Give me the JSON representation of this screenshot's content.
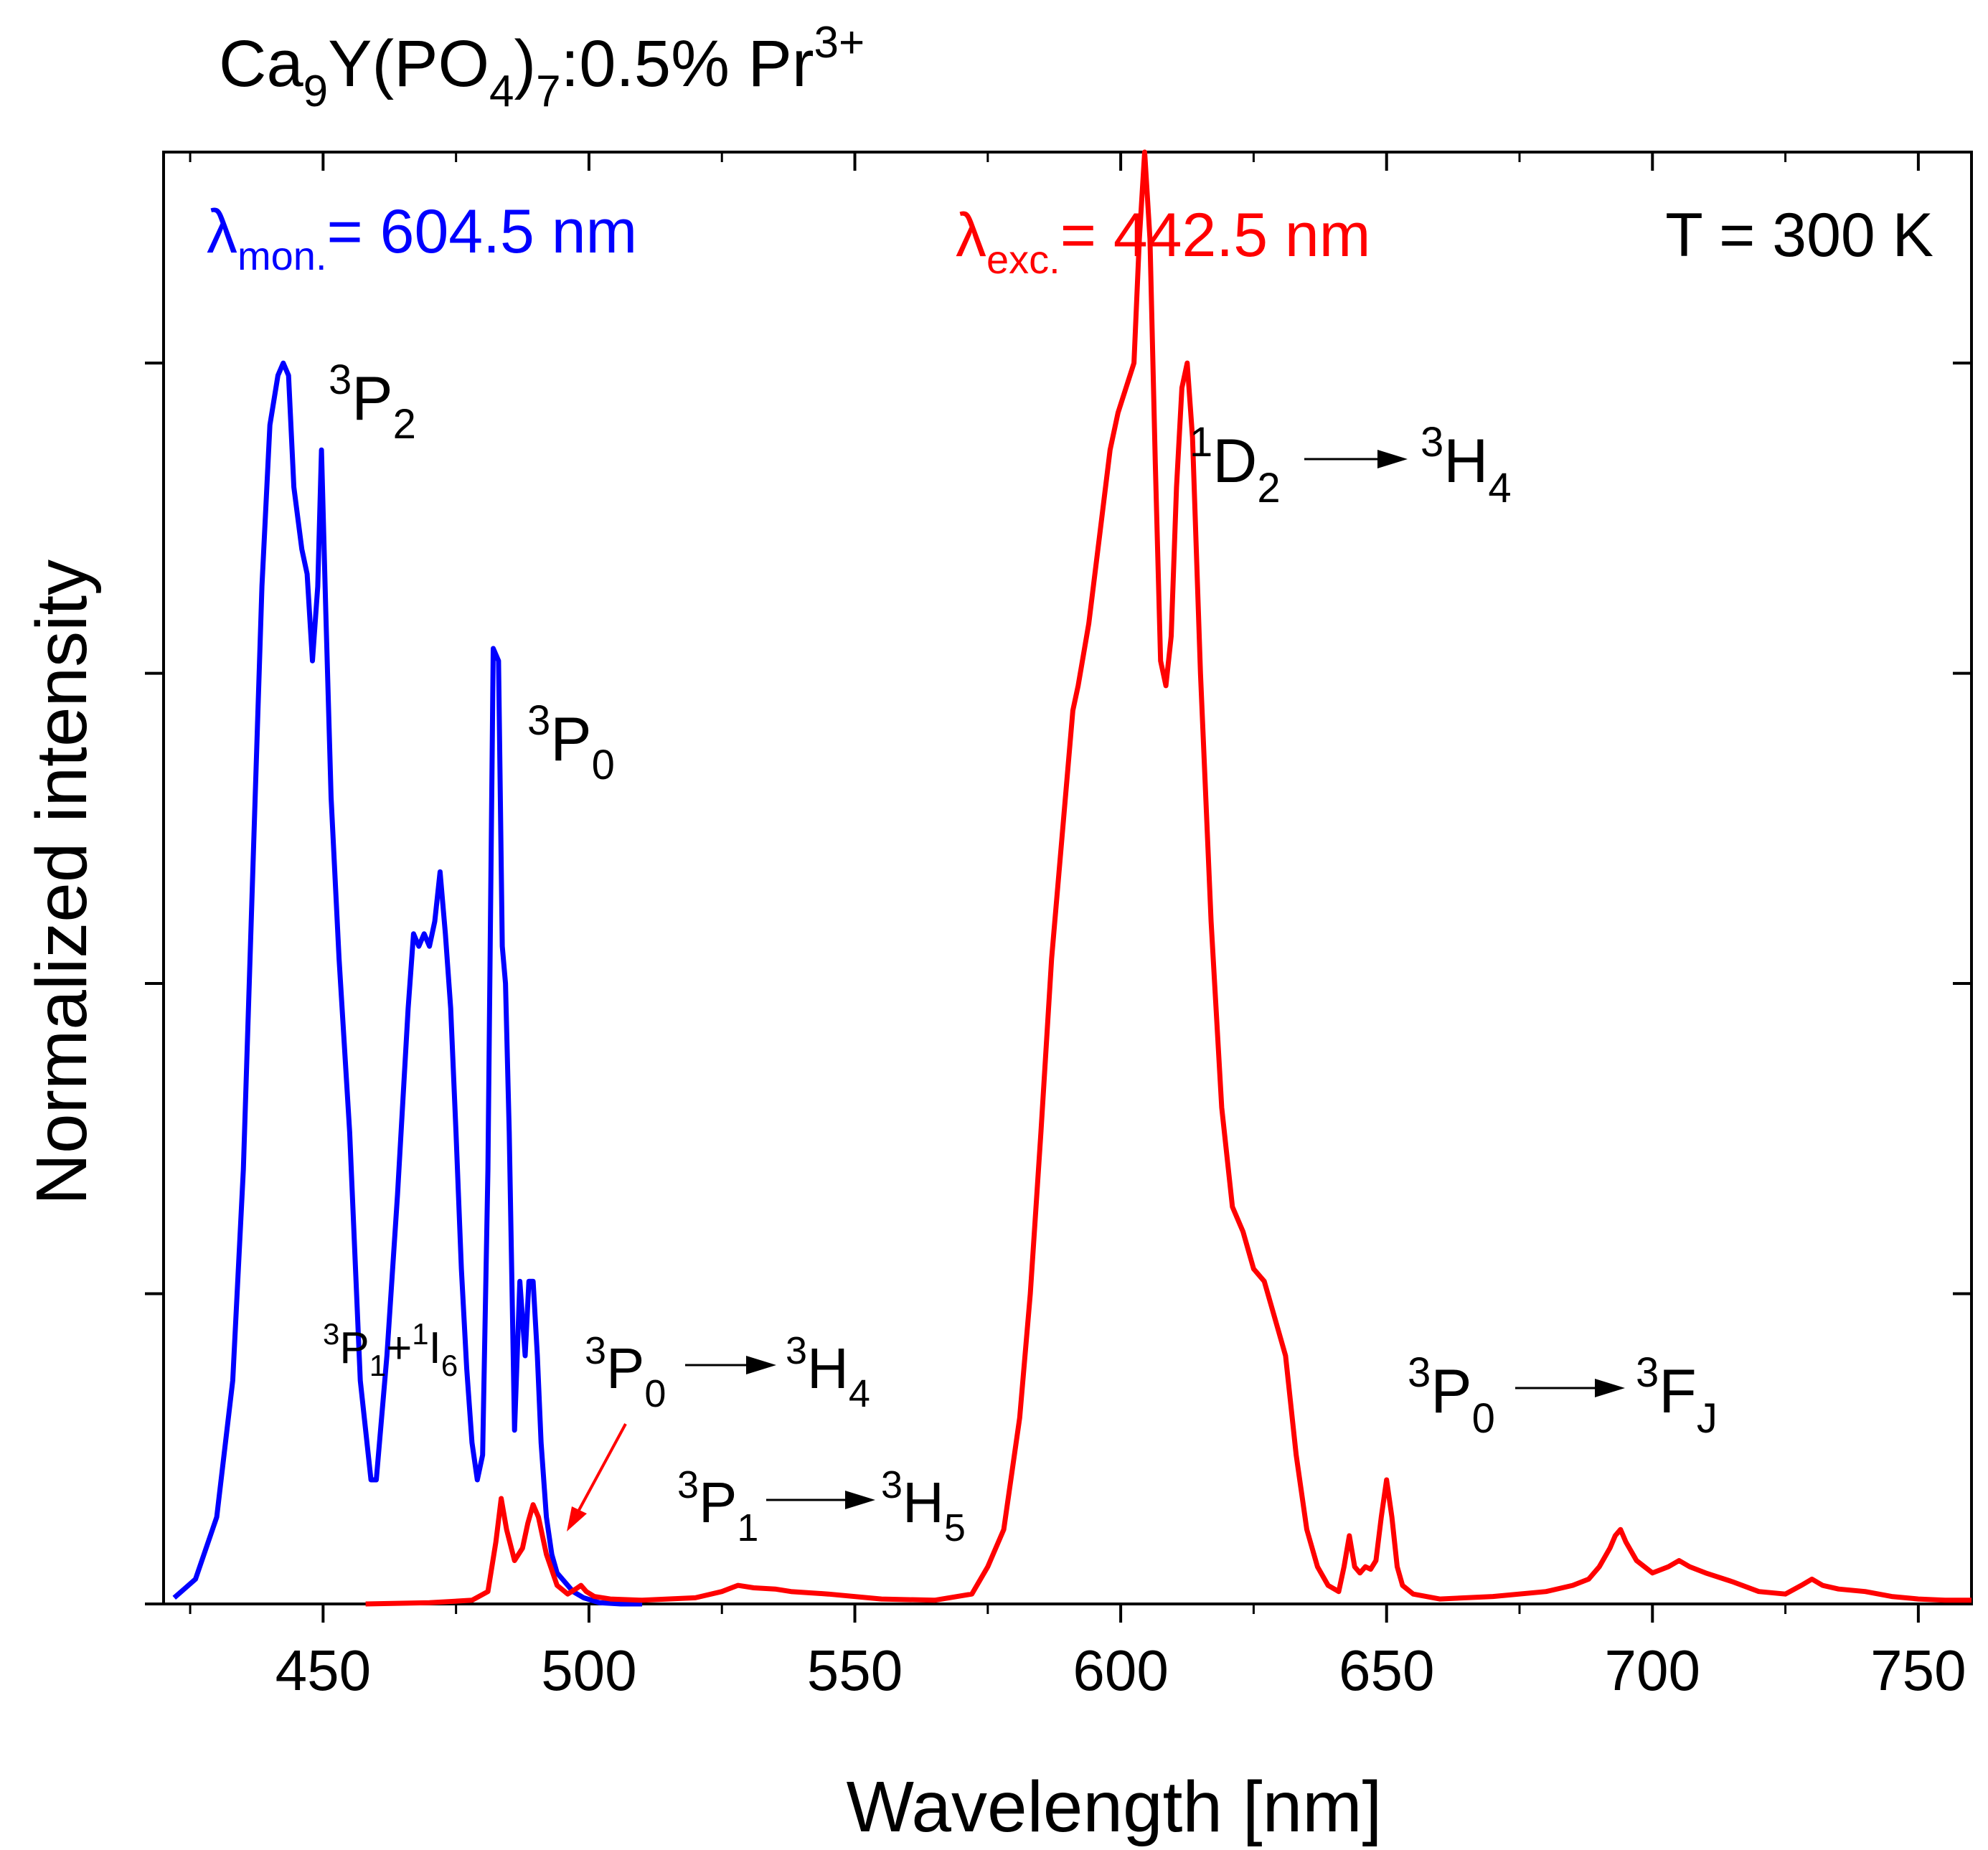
{
  "chart_data": {
    "type": "line",
    "title": {
      "base1": "Ca",
      "sub1": "9",
      "base2": "Y(PO",
      "sub2": "4",
      "base3": ")",
      "sub3": "7",
      "base4": ":0.5% Pr",
      "sup4": "3+"
    },
    "xlabel": "Wavelength [nm]",
    "ylabel": "Normalized intensity",
    "xlim": [
      420,
      760
    ],
    "ylim": [
      0,
      1.17
    ],
    "x_ticks": [
      450,
      500,
      550,
      600,
      650,
      700,
      750
    ],
    "x_tick_labels": [
      "450",
      "500",
      "550",
      "600",
      "650",
      "700",
      "750"
    ],
    "x_minor_ticks": [
      425,
      475,
      525,
      575,
      625,
      675,
      725
    ],
    "y_ticks": [
      0,
      0.25,
      0.5,
      0.75,
      1.0
    ],
    "legend": {
      "excitation": {
        "symbol": "λ",
        "sub": "mon.",
        "text": "= 604.5 nm"
      },
      "emission": {
        "symbol": "λ",
        "sub": "exc.",
        "text": "= 442.5 nm"
      },
      "temperature": "T = 300 K"
    },
    "annotations": {
      "p2": {
        "sup": "3",
        "base": "P",
        "sub": "2"
      },
      "p0": {
        "sup": "3",
        "base": "P",
        "sub": "0"
      },
      "p1i6": {
        "sup1": "3",
        "base1": "P",
        "sub1": "1",
        "plus": "+",
        "sup2": "1",
        "base2": "I",
        "sub2": "6"
      },
      "p0h4": {
        "sup1": "3",
        "base1": "P",
        "sub1": "0",
        "sup2": "3",
        "base2": "H",
        "sub2": "4"
      },
      "p1h5": {
        "sup1": "3",
        "base1": "P",
        "sub1": "1",
        "sup2": "3",
        "base2": "H",
        "sub2": "5"
      },
      "d2h4": {
        "sup1": "1",
        "base1": "D",
        "sub1": "2",
        "sup2": "3",
        "base2": "H",
        "sub2": "4"
      },
      "p0fj": {
        "sup1": "3",
        "base1": "P",
        "sub1": "0",
        "sup2": "3",
        "base2": "F",
        "sub2": "J"
      }
    },
    "series": [
      {
        "name": "Excitation (λmon. = 604.5 nm)",
        "color": "#0000ff",
        "x": [
          422,
          426,
          430,
          433,
          435,
          437,
          438.5,
          440,
          441.5,
          442.5,
          443.5,
          444.5,
          446,
          447,
          448,
          449,
          449.7,
          450.5,
          451.5,
          453,
          455,
          457,
          459,
          460,
          462,
          464,
          466,
          467,
          468,
          469,
          470,
          471,
          472,
          473,
          474,
          475,
          476,
          477,
          478,
          479,
          480,
          481,
          482,
          483,
          483.7,
          484.3,
          485,
          486,
          487,
          488,
          488.7,
          489.5,
          490.3,
          491,
          492,
          493,
          494,
          495,
          497,
          499,
          502,
          506,
          510
        ],
        "y": [
          0.005,
          0.02,
          0.07,
          0.18,
          0.35,
          0.62,
          0.82,
          0.95,
          0.99,
          1.0,
          0.99,
          0.9,
          0.85,
          0.83,
          0.76,
          0.82,
          0.93,
          0.8,
          0.65,
          0.52,
          0.38,
          0.18,
          0.1,
          0.1,
          0.2,
          0.33,
          0.48,
          0.54,
          0.53,
          0.54,
          0.53,
          0.55,
          0.59,
          0.54,
          0.48,
          0.38,
          0.27,
          0.19,
          0.13,
          0.1,
          0.12,
          0.35,
          0.77,
          0.76,
          0.53,
          0.5,
          0.38,
          0.14,
          0.26,
          0.2,
          0.26,
          0.26,
          0.2,
          0.13,
          0.07,
          0.04,
          0.025,
          0.02,
          0.01,
          0.005,
          0.001,
          0,
          0
        ]
      },
      {
        "name": "Emission (λexc. = 442.5 nm)",
        "color": "#ff0000",
        "x": [
          458,
          470,
          478,
          481,
          482.5,
          483.5,
          484.5,
          486,
          487.5,
          488.5,
          489.5,
          490.5,
          492,
          494,
          496,
          497.5,
          498.5,
          499.5,
          501,
          504,
          510,
          520,
          525,
          528,
          531,
          535,
          538,
          545,
          555,
          565,
          572,
          575,
          578,
          581,
          583,
          585,
          587,
          589,
          591,
          592,
          594,
          596,
          598,
          599.5,
          601,
          602.5,
          603.5,
          604.5,
          605.5,
          606.5,
          607.5,
          608.5,
          609.5,
          610.5,
          611.5,
          612.5,
          613.5,
          615,
          617,
          619,
          621,
          623,
          625,
          627,
          629,
          631,
          633,
          635,
          637,
          639,
          641,
          642,
          643,
          644,
          645,
          646,
          647,
          648,
          649,
          650,
          651,
          652,
          653,
          655,
          660,
          670,
          680,
          685,
          688,
          690,
          692,
          693,
          694,
          695,
          697,
          700,
          703,
          705,
          707,
          710,
          715,
          720,
          725,
          728,
          730,
          732,
          735,
          740,
          745,
          750,
          755,
          760
        ],
        "y": [
          0,
          0.001,
          0.003,
          0.01,
          0.05,
          0.085,
          0.06,
          0.035,
          0.045,
          0.065,
          0.08,
          0.07,
          0.04,
          0.015,
          0.008,
          0.012,
          0.015,
          0.01,
          0.006,
          0.004,
          0.003,
          0.005,
          0.01,
          0.015,
          0.013,
          0.012,
          0.01,
          0.008,
          0.004,
          0.003,
          0.008,
          0.03,
          0.06,
          0.15,
          0.25,
          0.38,
          0.52,
          0.62,
          0.72,
          0.74,
          0.79,
          0.86,
          0.93,
          0.96,
          0.98,
          1.0,
          1.1,
          1.17,
          1.1,
          0.92,
          0.76,
          0.74,
          0.78,
          0.9,
          0.98,
          1.0,
          0.94,
          0.75,
          0.55,
          0.4,
          0.32,
          0.3,
          0.27,
          0.26,
          0.23,
          0.2,
          0.12,
          0.06,
          0.03,
          0.015,
          0.01,
          0.03,
          0.055,
          0.03,
          0.025,
          0.03,
          0.028,
          0.035,
          0.07,
          0.1,
          0.07,
          0.03,
          0.015,
          0.008,
          0.004,
          0.006,
          0.01,
          0.015,
          0.02,
          0.03,
          0.045,
          0.055,
          0.06,
          0.05,
          0.035,
          0.025,
          0.03,
          0.035,
          0.03,
          0.025,
          0.018,
          0.01,
          0.008,
          0.015,
          0.02,
          0.015,
          0.012,
          0.01,
          0.006,
          0.004,
          0.003,
          0.003
        ]
      }
    ]
  }
}
